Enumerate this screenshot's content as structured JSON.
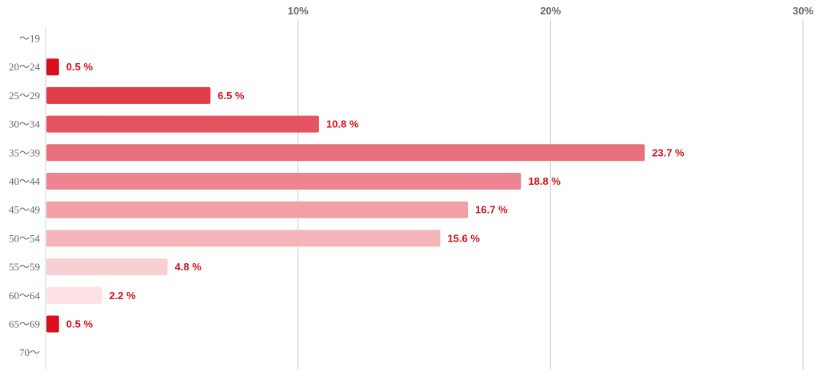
{
  "chart_data": {
    "type": "bar",
    "orientation": "horizontal",
    "title": "",
    "xlabel": "",
    "ylabel": "",
    "xlim": [
      0,
      30
    ],
    "x_ticks": [
      {
        "value": 10,
        "label": "10%"
      },
      {
        "value": 20,
        "label": "20%"
      },
      {
        "value": 30,
        "label": "30%"
      }
    ],
    "grid": true,
    "legend": "none",
    "categories": [
      "～19",
      "20～24",
      "25～29",
      "30～34",
      "35～39",
      "40～44",
      "45～49",
      "50～54",
      "55～59",
      "60～64",
      "65～69",
      "70～"
    ],
    "values": [
      null,
      0.5,
      6.5,
      10.8,
      23.7,
      18.8,
      16.7,
      15.6,
      4.8,
      2.2,
      0.5,
      null
    ],
    "data_labels": [
      "",
      "0.5 %",
      "6.5 %",
      "10.8 %",
      "23.7 %",
      "18.8 %",
      "16.7 %",
      "15.6 %",
      "4.8 %",
      "2.2 %",
      "0.5 %",
      ""
    ],
    "bar_colors": [
      "#d7101b",
      "#d7101b",
      "#e03c49",
      "#e45461",
      "#e8707b",
      "#ec858f",
      "#f0a0a6",
      "#f3b5b9",
      "#f8cfd2",
      "#fce2e4",
      "#d7101b",
      "#d7101b"
    ],
    "label_color": "#d0121b",
    "grid_color": "#cccccc",
    "axis_color": "#c8d6e6"
  }
}
